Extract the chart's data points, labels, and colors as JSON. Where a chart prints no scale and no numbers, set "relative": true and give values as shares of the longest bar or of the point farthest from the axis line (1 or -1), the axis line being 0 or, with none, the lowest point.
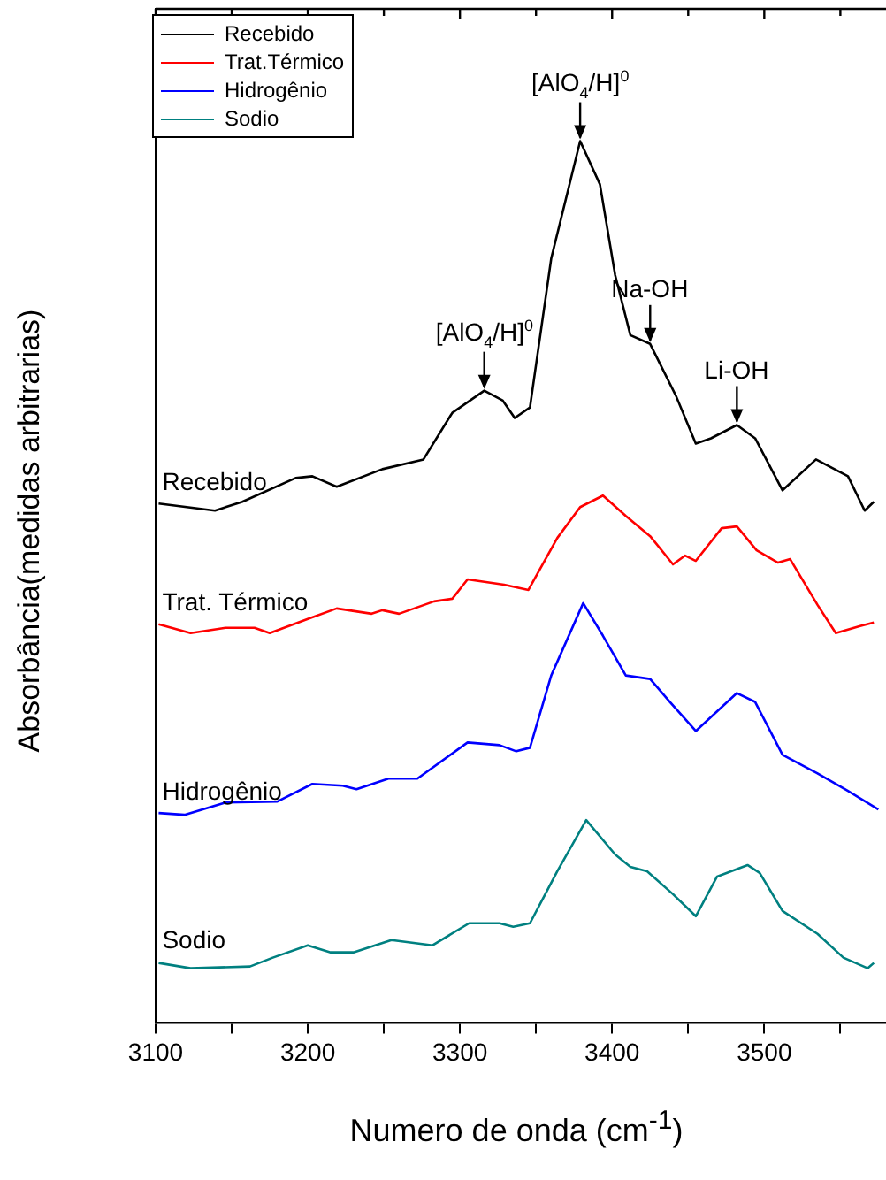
{
  "chart_data": {
    "type": "line",
    "relative": true,
    "xlabel": "Numero de onda (cm$^{-1}$)",
    "ylabel": "Absorbância(medidas arbitrarias)",
    "xlim": [
      3100,
      3580
    ],
    "xticks": [
      3100,
      {
        "value": 3150,
        "label": null
      },
      3200,
      {
        "value": 3250,
        "label": null
      },
      3300,
      {
        "value": 3350,
        "label": null
      },
      3400,
      {
        "value": 3450,
        "label": null
      },
      3500,
      {
        "value": 3550,
        "label": null
      }
    ],
    "legend": "top left",
    "grid": false,
    "marker": "none",
    "line_style": "solid",
    "series": [
      {
        "name": "Recebido",
        "color": "#000000",
        "x": [
          3102,
          3139,
          3157,
          3192,
          3203,
          3219,
          3249,
          3276,
          3295,
          3316,
          3328,
          3336,
          3346,
          3360,
          3379,
          3392,
          3402,
          3412,
          3425,
          3442,
          3455,
          3465,
          3482,
          3494,
          3512,
          3534,
          3555,
          3566,
          3572
        ],
        "values": [
          0.589,
          0.581,
          0.591,
          0.618,
          0.62,
          0.608,
          0.628,
          0.639,
          0.692,
          0.717,
          0.706,
          0.686,
          0.698,
          0.867,
          1.0,
          0.951,
          0.848,
          0.78,
          0.77,
          0.711,
          0.657,
          0.663,
          0.678,
          0.663,
          0.604,
          0.639,
          0.62,
          0.581,
          0.591
        ]
      },
      {
        "name": "Trat.Térmico",
        "color": "#ff0000",
        "x": [
          3102,
          3123,
          3146,
          3165,
          3175,
          3200,
          3219,
          3242,
          3249,
          3260,
          3283,
          3295,
          3305,
          3329,
          3345,
          3364,
          3379,
          3394,
          3409,
          3425,
          3440,
          3448,
          3455,
          3472,
          3482,
          3495,
          3509,
          3517,
          3535,
          3547,
          3563,
          3572
        ],
        "values": [
          0.452,
          0.442,
          0.448,
          0.448,
          0.442,
          0.458,
          0.47,
          0.464,
          0.468,
          0.464,
          0.478,
          0.481,
          0.503,
          0.497,
          0.491,
          0.55,
          0.585,
          0.598,
          0.575,
          0.552,
          0.52,
          0.53,
          0.524,
          0.561,
          0.563,
          0.536,
          0.522,
          0.526,
          0.474,
          0.442,
          0.45,
          0.454
        ]
      },
      {
        "name": "Hidrogênio",
        "color": "#0000ff",
        "x": [
          3102,
          3119,
          3146,
          3180,
          3203,
          3223,
          3232,
          3253,
          3272,
          3305,
          3326,
          3337,
          3346,
          3360,
          3381,
          3394,
          3409,
          3425,
          3438,
          3455,
          3482,
          3494,
          3512,
          3535,
          3555,
          3575
        ],
        "values": [
          0.238,
          0.236,
          0.25,
          0.251,
          0.271,
          0.269,
          0.265,
          0.277,
          0.277,
          0.318,
          0.315,
          0.308,
          0.312,
          0.394,
          0.476,
          0.439,
          0.394,
          0.39,
          0.364,
          0.331,
          0.374,
          0.364,
          0.304,
          0.283,
          0.263,
          0.242
        ]
      },
      {
        "name": "Sodio",
        "color": "#008080",
        "x": [
          3102,
          3123,
          3162,
          3177,
          3200,
          3215,
          3230,
          3255,
          3282,
          3306,
          3326,
          3335,
          3346,
          3364,
          3383,
          3402,
          3412,
          3423,
          3440,
          3455,
          3469,
          3489,
          3497,
          3512,
          3535,
          3552,
          3568,
          3572
        ],
        "values": [
          0.068,
          0.062,
          0.064,
          0.074,
          0.088,
          0.08,
          0.08,
          0.094,
          0.088,
          0.113,
          0.113,
          0.109,
          0.113,
          0.172,
          0.23,
          0.191,
          0.177,
          0.172,
          0.146,
          0.121,
          0.166,
          0.179,
          0.17,
          0.127,
          0.101,
          0.074,
          0.062,
          0.068
        ]
      }
    ],
    "annotations": [
      "Recebido",
      "Trat. Térmico",
      "Hidrogênio",
      "Sodio",
      {
        "text": "[AlO$_{4}$/H]$^{0}$",
        "x": 3316,
        "y": 0.717
      },
      {
        "text": "[AlO$_{4}$/H]$^{0}$",
        "x": 3379,
        "y": 1.0
      },
      {
        "text": "Na-OH",
        "x": 3425,
        "y": 0.77
      },
      {
        "text": "Li-OH",
        "x": 3482,
        "y": 0.678
      }
    ]
  }
}
